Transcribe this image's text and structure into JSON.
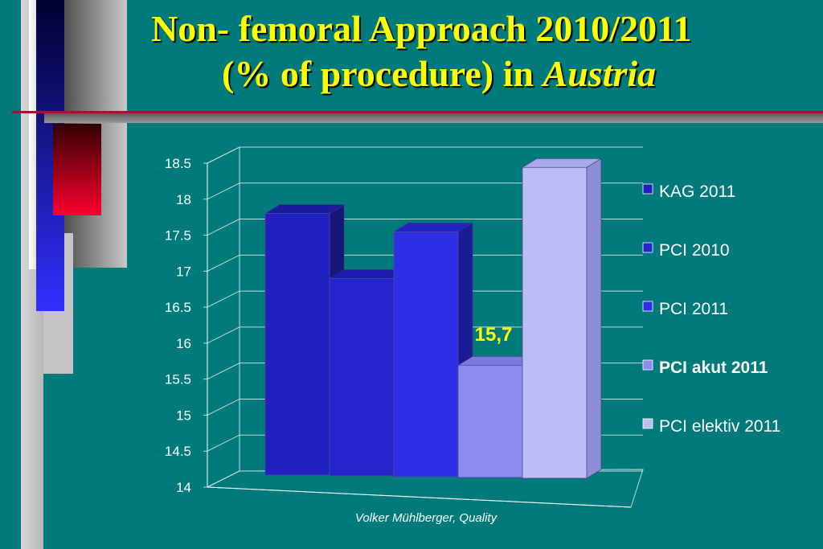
{
  "slide": {
    "title_line1": "Non- femoral Approach 2010/2011",
    "title_line2_prefix": "(% of procedure) in ",
    "title_line2_italic": "Austria",
    "footer": "Volker Mühlberger, Quality"
  },
  "colors": {
    "background": "#007a7a",
    "title": "#ffff00",
    "highlight_legend": "#ffff00"
  },
  "chart_data": {
    "type": "bar",
    "title": "",
    "xlabel": "",
    "ylabel": "",
    "ylim": [
      14,
      18.5
    ],
    "yticks": [
      "18.5",
      "18",
      "17.5",
      "17",
      "16.5",
      "16",
      "15.5",
      "15",
      "14.5",
      "14"
    ],
    "grid": true,
    "legend_position": "right",
    "series": [
      {
        "name": "KAG 2011",
        "value": 17.8,
        "color": "#2020c0",
        "side": "#15157a",
        "top": "#1a1a9e"
      },
      {
        "name": "PCI 2010",
        "value": 16.9,
        "color": "#2525cc",
        "side": "#161685",
        "top": "#1c1ca8"
      },
      {
        "name": "PCI 2011",
        "value": 17.55,
        "color": "#2e2ee6",
        "side": "#1b1b96",
        "top": "#2323c4"
      },
      {
        "name": "PCI akut 2011",
        "value": 15.7,
        "color": "#8c8cf0",
        "side": "#5e5ec0",
        "top": "#7a7adf"
      },
      {
        "name": "PCI elektiv 2011",
        "value": 18.45,
        "color": "#bdbdf5",
        "side": "#8e8ed2",
        "top": "#a9a9ea"
      }
    ],
    "annotations": [
      {
        "text": "15,7",
        "series": "PCI akut 2011"
      }
    ]
  }
}
